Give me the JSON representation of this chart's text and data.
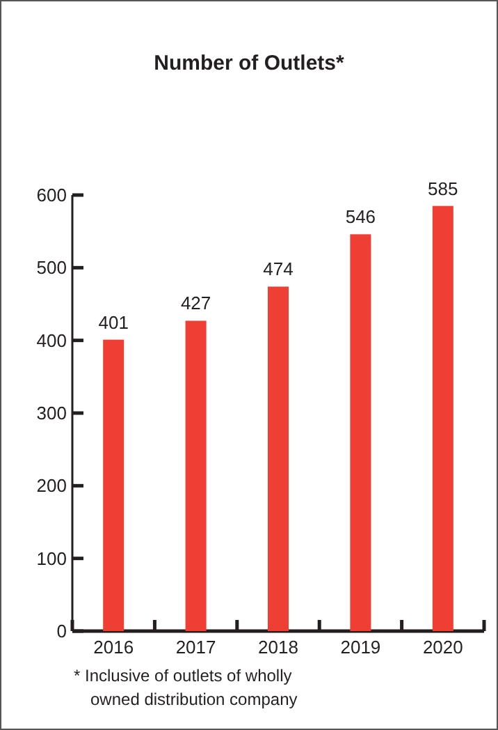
{
  "chart_data": {
    "type": "bar",
    "title": "Number of Outlets*",
    "categories": [
      "2016",
      "2017",
      "2018",
      "2019",
      "2020"
    ],
    "values": [
      401,
      427,
      474,
      546,
      585
    ],
    "color": "#ef3e33",
    "ylim": [
      0,
      600
    ],
    "yticks": [
      0,
      100,
      200,
      300,
      400,
      500,
      600
    ],
    "data_labels": true,
    "grid": false,
    "annotations": [
      "* Inclusive of outlets of wholly owned distribution company"
    ]
  }
}
